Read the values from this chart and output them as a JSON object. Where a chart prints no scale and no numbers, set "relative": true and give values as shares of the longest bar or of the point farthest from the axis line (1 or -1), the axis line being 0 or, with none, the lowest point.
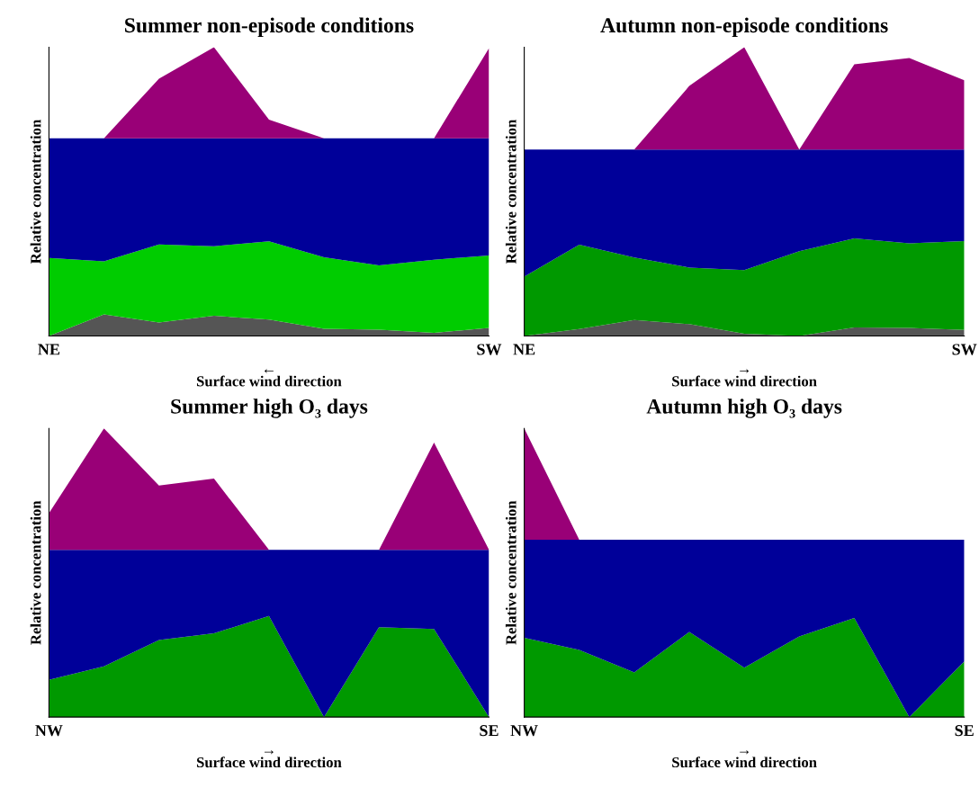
{
  "chart_data": [
    {
      "type": "area",
      "title": "Summer non-episode conditions",
      "ylabel": "Relative concentration",
      "xlabel": "←\nSurface wind direction",
      "relative": true,
      "stacked": true,
      "tick_labels": "x",
      "legend": false,
      "grid": false,
      "categories": [
        "NE",
        null,
        null,
        null,
        null,
        null,
        null,
        null,
        "SW"
      ],
      "series": [
        {
          "color": "#555555",
          "values": [
            0,
            0.075,
            0.047,
            0.07,
            0.057,
            0.025,
            0.022,
            0.011,
            0.028
          ]
        },
        {
          "color": "#00cc00",
          "values": [
            0.27,
            0.184,
            0.27,
            0.241,
            0.271,
            0.248,
            0.223,
            0.253,
            0.251
          ]
        },
        {
          "color": "#000099",
          "values": [
            0.415,
            0.426,
            0.368,
            0.374,
            0.357,
            0.412,
            0.44,
            0.421,
            0.406
          ]
        },
        {
          "color": "#990077",
          "values": [
            0,
            0,
            0.206,
            0.315,
            0.064,
            0,
            0,
            0,
            0.312
          ]
        }
      ]
    },
    {
      "type": "area",
      "title": "Autumn non-episode conditions",
      "ylabel": "Relative concentration",
      "xlabel": "→\nSurface wind direction",
      "relative": true,
      "stacked": true,
      "tick_labels": "x",
      "legend": false,
      "grid": false,
      "categories": [
        "NE",
        null,
        null,
        null,
        null,
        null,
        null,
        null,
        "SW"
      ],
      "series": [
        {
          "color": "#555555",
          "values": [
            0,
            0.024,
            0.055,
            0.041,
            0.008,
            0,
            0.03,
            0.028,
            0.021
          ]
        },
        {
          "color": "#009900",
          "values": [
            0.206,
            0.292,
            0.217,
            0.196,
            0.22,
            0.294,
            0.308,
            0.293,
            0.308
          ]
        },
        {
          "color": "#000099",
          "values": [
            0.44,
            0.33,
            0.374,
            0.409,
            0.418,
            0.352,
            0.308,
            0.325,
            0.317
          ]
        },
        {
          "color": "#990077",
          "values": [
            0,
            0,
            0,
            0.22,
            0.354,
            0,
            0.295,
            0.317,
            0.24
          ]
        }
      ]
    },
    {
      "type": "area",
      "title": "Summer high O₃ days",
      "ylabel": "Relative concentration",
      "xlabel": "→\nSurface wind direction",
      "relative": true,
      "stacked": true,
      "tick_labels": "x",
      "legend": false,
      "grid": false,
      "categories": [
        "NW",
        null,
        null,
        null,
        null,
        null,
        null,
        null,
        "SE"
      ],
      "series": [
        {
          "color": "#009900",
          "values": [
            0.129,
            0.176,
            0.267,
            0.29,
            0.35,
            0,
            0.311,
            0.305,
            0
          ]
        },
        {
          "color": "#000099",
          "values": [
            0.45,
            0.403,
            0.312,
            0.289,
            0.229,
            0.579,
            0.268,
            0.274,
            0.579
          ]
        },
        {
          "color": "#990077",
          "values": [
            0.127,
            0.421,
            0.223,
            0.247,
            0,
            0,
            0,
            0.372,
            0
          ]
        }
      ]
    },
    {
      "type": "area",
      "title": "Autumn high O₃ days",
      "ylabel": "Relative concentration",
      "xlabel": "→\nSurface wind direction",
      "relative": true,
      "stacked": true,
      "tick_labels": "x",
      "legend": false,
      "grid": false,
      "categories": [
        "NW",
        null,
        null,
        null,
        null,
        null,
        null,
        null,
        "SE"
      ],
      "series": [
        {
          "color": "#009900",
          "values": [
            0.275,
            0.233,
            0.155,
            0.295,
            0.171,
            0.279,
            0.343,
            0,
            0.193
          ]
        },
        {
          "color": "#000099",
          "values": [
            0.339,
            0.381,
            0.459,
            0.319,
            0.443,
            0.335,
            0.271,
            0.614,
            0.421
          ]
        },
        {
          "color": "#990077",
          "values": [
            0.386,
            0,
            0,
            0,
            0,
            0,
            0,
            0,
            0
          ]
        }
      ]
    }
  ]
}
